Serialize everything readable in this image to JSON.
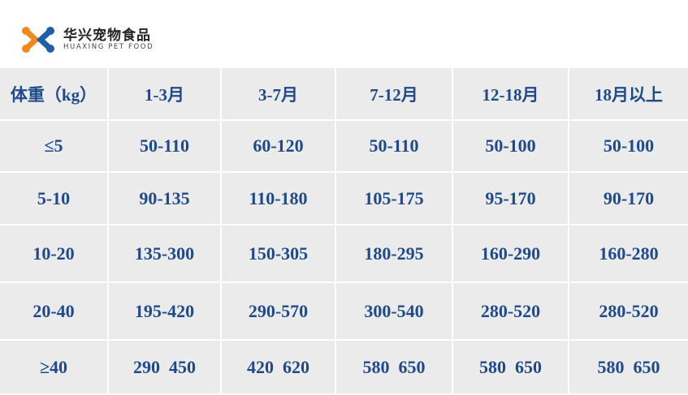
{
  "brand": {
    "name_cn": "华兴宠物食品",
    "name_en": "HUAXING PET FOOD",
    "colors": {
      "orange": "#ee8a1c",
      "blue": "#1f5fa8"
    }
  },
  "table": {
    "headers": [
      "体重（kg）",
      "1-3月",
      "3-7月",
      "7-12月",
      "12-18月",
      "18月以上"
    ],
    "rows": [
      [
        "≤5",
        "50-110",
        "60-120",
        "50-110",
        "50-100",
        "50-100"
      ],
      [
        "5-10",
        "90-135",
        "110-180",
        "105-175",
        "95-170",
        "90-170"
      ],
      [
        "10-20",
        "135-300",
        "150-305",
        "180-295",
        "160-290",
        "160-280"
      ],
      [
        "20-40",
        "195-420",
        "290-570",
        "300-540",
        "280-520",
        "280-520"
      ],
      [
        "≥40",
        "290  450",
        "420  620",
        "580  650",
        "580  650",
        "580  650"
      ]
    ]
  }
}
